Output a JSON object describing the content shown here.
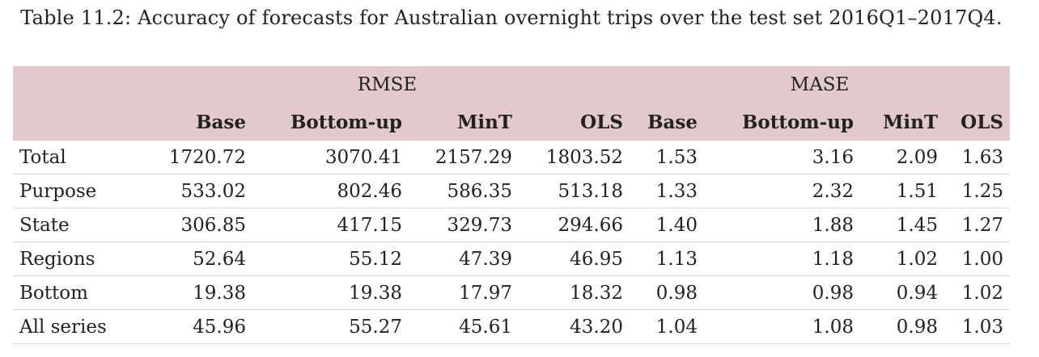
{
  "caption": "Table 11.2: Accuracy of forecasts for Australian overnight trips over the test set 2016Q1–2017Q4.",
  "table": {
    "group_headers": [
      {
        "label": "",
        "span": 1
      },
      {
        "label": "RMSE",
        "span": 4
      },
      {
        "label": "MASE",
        "span": 4
      }
    ],
    "columns": [
      "",
      "Base",
      "Bottom-up",
      "MinT",
      "OLS",
      "Base",
      "Bottom-up",
      "MinT",
      "OLS"
    ],
    "rows": [
      [
        "Total",
        "1720.72",
        "3070.41",
        "2157.29",
        "1803.52",
        "1.53",
        "3.16",
        "2.09",
        "1.63"
      ],
      [
        "Purpose",
        "533.02",
        "802.46",
        "586.35",
        "513.18",
        "1.33",
        "2.32",
        "1.51",
        "1.25"
      ],
      [
        "State",
        "306.85",
        "417.15",
        "329.73",
        "294.66",
        "1.40",
        "1.88",
        "1.45",
        "1.27"
      ],
      [
        "Regions",
        "52.64",
        "55.12",
        "47.39",
        "46.95",
        "1.13",
        "1.18",
        "1.02",
        "1.00"
      ],
      [
        "Bottom",
        "19.38",
        "19.38",
        "17.97",
        "18.32",
        "0.98",
        "0.98",
        "0.94",
        "1.02"
      ],
      [
        "All series",
        "45.96",
        "55.27",
        "45.61",
        "43.20",
        "1.04",
        "1.08",
        "0.98",
        "1.03"
      ]
    ]
  }
}
